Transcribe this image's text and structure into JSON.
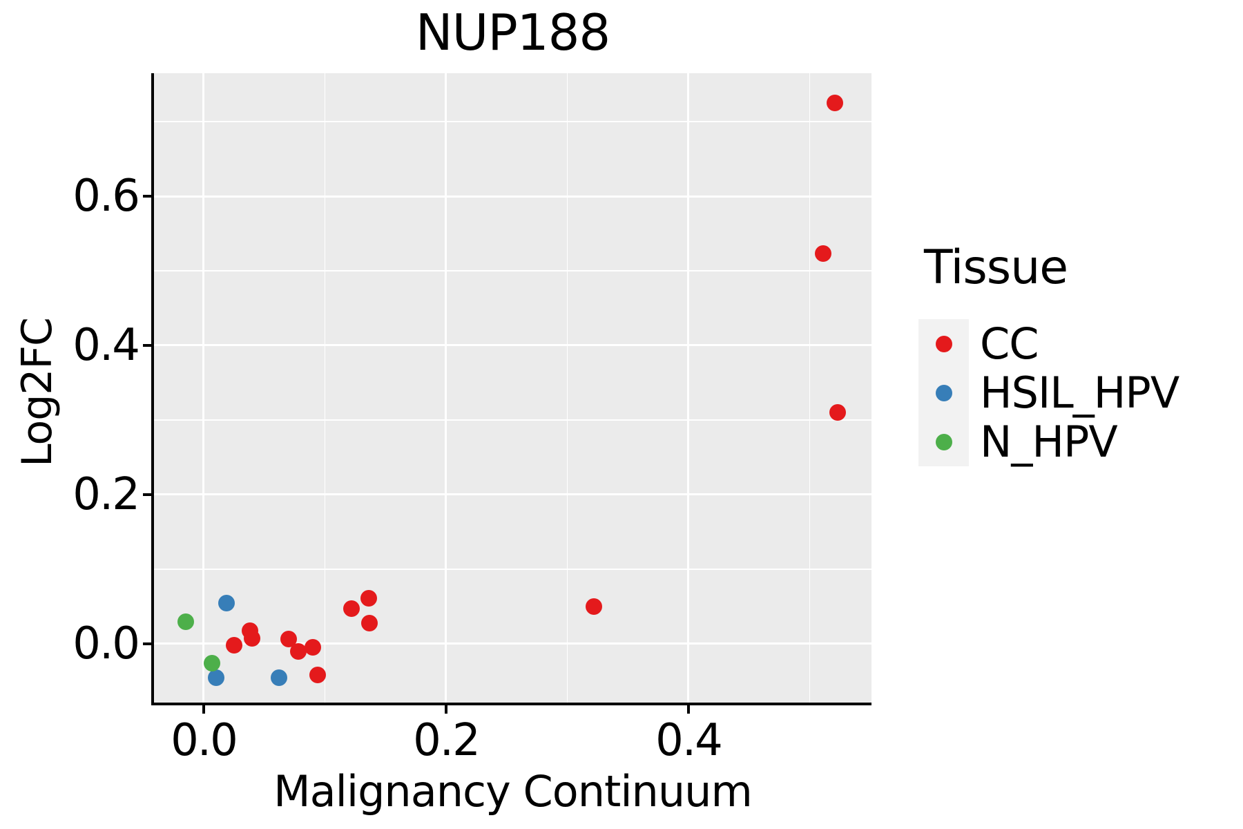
{
  "figure": {
    "background": "#ffffff"
  },
  "chart_data": {
    "type": "scatter",
    "title": "NUP188",
    "xlabel": "Malignancy Continuum",
    "ylabel": "Log2FC",
    "panel_background": "#EBEBEB",
    "grid": {
      "on": true,
      "major_color": "#ffffff",
      "minor_color": "#ffffff"
    },
    "x_axis": {
      "range": [
        -0.041,
        0.551
      ],
      "ticks": [
        0.0,
        0.2,
        0.4
      ],
      "tick_labels": [
        "0.0",
        "0.2",
        "0.4"
      ],
      "minor_ticks": [
        0.1,
        0.3,
        0.5
      ]
    },
    "y_axis": {
      "range": [
        -0.079,
        0.765
      ],
      "ticks": [
        0.0,
        0.2,
        0.4,
        0.6
      ],
      "tick_labels": [
        "0.0",
        "0.2",
        "0.4",
        "0.6"
      ],
      "minor_ticks": [
        0.1,
        0.3,
        0.5,
        0.7
      ]
    },
    "legend": {
      "title": "Tissue",
      "position": "right",
      "key_background": "#F2F2F2",
      "entries": [
        {
          "label": "CC",
          "color": "#E41A1C"
        },
        {
          "label": "HSIL_HPV",
          "color": "#377EB8"
        },
        {
          "label": "N_HPV",
          "color": "#4DAF4A"
        }
      ]
    },
    "series": [
      {
        "name": "CC",
        "color": "#E41A1C",
        "points": [
          [
            0.025,
            -0.002
          ],
          [
            0.038,
            0.017
          ],
          [
            0.04,
            0.007
          ],
          [
            0.07,
            0.006
          ],
          [
            0.078,
            -0.01
          ],
          [
            0.09,
            -0.005
          ],
          [
            0.094,
            -0.042
          ],
          [
            0.122,
            0.047
          ],
          [
            0.136,
            0.061
          ],
          [
            0.137,
            0.028
          ],
          [
            0.322,
            0.05
          ],
          [
            0.511,
            0.523
          ],
          [
            0.521,
            0.725
          ],
          [
            0.523,
            0.31
          ]
        ]
      },
      {
        "name": "HSIL_HPV",
        "color": "#377EB8",
        "points": [
          [
            0.019,
            0.054
          ],
          [
            0.01,
            -0.046
          ],
          [
            0.062,
            -0.046
          ]
        ]
      },
      {
        "name": "N_HPV",
        "color": "#4DAF4A",
        "points": [
          [
            -0.015,
            0.029
          ],
          [
            0.007,
            -0.026
          ]
        ]
      }
    ]
  }
}
